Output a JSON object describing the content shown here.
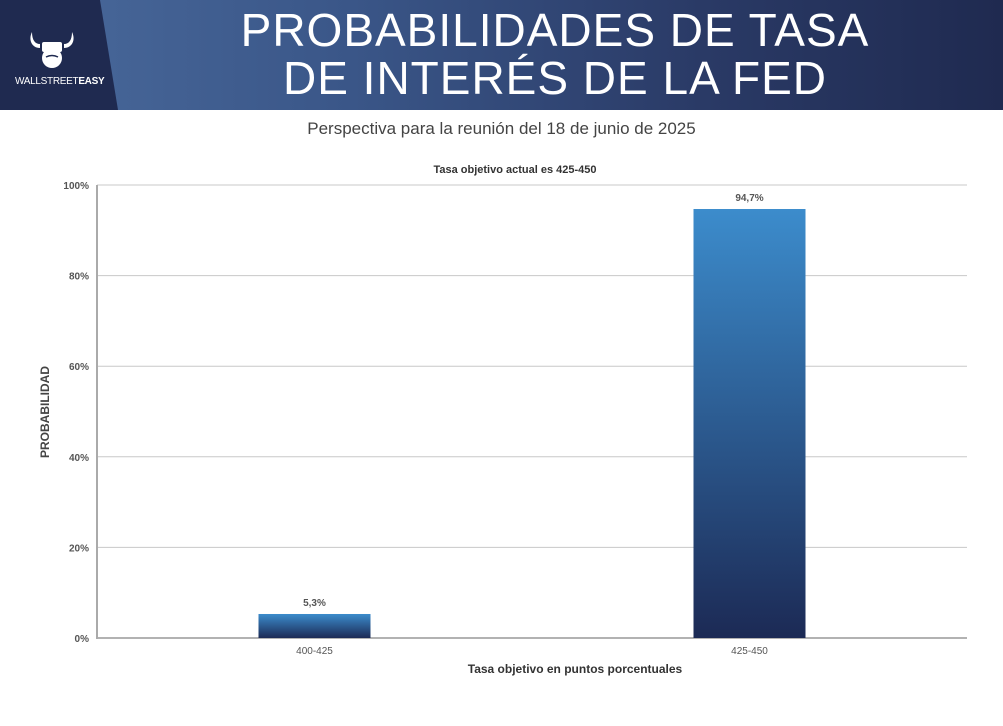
{
  "header": {
    "title_line1": "PROBABILIDADES DE TASA",
    "title_line2": "DE INTERÉS DE LA FED",
    "logo_text_light": "WALLSTREET",
    "logo_text_bold": "EASY",
    "logo_icon": "bull-fist-icon"
  },
  "subtitle": "Perspectiva para la reunión del 18 de junio de 2025",
  "colors": {
    "header_dark": "#1f2a50",
    "header_light": "#4a6a9c",
    "bar_top": "#3c8ccc",
    "bar_bottom": "#1c2a55"
  },
  "chart_data": {
    "type": "bar",
    "title": "Tasa objetivo actual es 425-450",
    "xlabel": "Tasa objetivo en puntos porcentuales",
    "ylabel": "PROBABILIDAD",
    "categories": [
      "400-425",
      "425-450"
    ],
    "values": [
      5.3,
      94.7
    ],
    "data_labels": [
      "5,3%",
      "94,7%"
    ],
    "ylim": [
      0,
      100
    ],
    "yticks": [
      0,
      20,
      40,
      60,
      80,
      100
    ],
    "ytick_labels": [
      "0%",
      "20%",
      "40%",
      "60%",
      "80%",
      "100%"
    ],
    "grid": true,
    "legend": "none"
  }
}
